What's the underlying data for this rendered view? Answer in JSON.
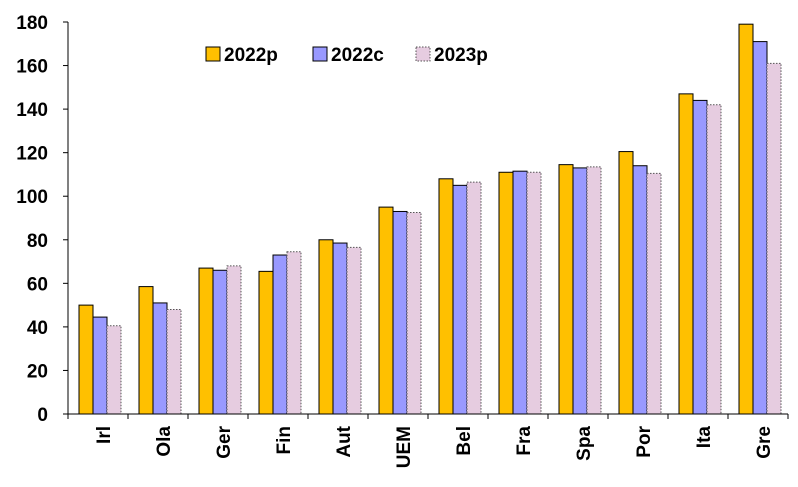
{
  "chart_data": {
    "type": "bar",
    "title": "",
    "xlabel": "",
    "ylabel": "",
    "categories": [
      "Irl",
      "Ola",
      "Ger",
      "Fin",
      "Aut",
      "UEM",
      "Bel",
      "Fra",
      "Spa",
      "Por",
      "Ita",
      "Gre"
    ],
    "ylim": [
      0,
      180
    ],
    "yticks": [
      0,
      20,
      40,
      60,
      80,
      100,
      120,
      140,
      160,
      180
    ],
    "grid": false,
    "legend_position": "top-left",
    "series": [
      {
        "name": "2022p",
        "color": "#FFC000",
        "values": [
          50,
          58.5,
          67,
          65.5,
          80,
          95,
          108,
          111,
          114.5,
          120.5,
          147,
          179
        ]
      },
      {
        "name": "2022c",
        "color": "#9999FF",
        "values": [
          44.5,
          51,
          66,
          73,
          78.5,
          93,
          105,
          111.5,
          113,
          114,
          144,
          171
        ]
      },
      {
        "name": "2023p",
        "color": "#E6CCE0",
        "values": [
          40.5,
          48,
          68,
          74.5,
          76.5,
          92.5,
          106.5,
          111,
          113.5,
          110.5,
          142,
          161
        ]
      }
    ]
  }
}
